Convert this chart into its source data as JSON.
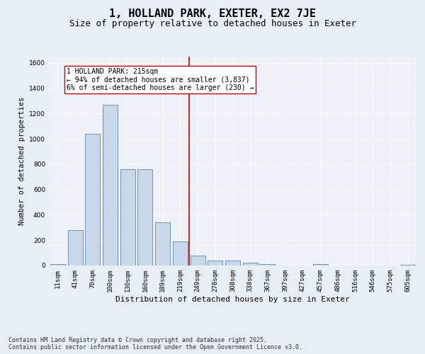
{
  "title": "1, HOLLAND PARK, EXETER, EX2 7JE",
  "subtitle": "Size of property relative to detached houses in Exeter",
  "xlabel": "Distribution of detached houses by size in Exeter",
  "ylabel": "Number of detached properties",
  "categories": [
    "11sqm",
    "41sqm",
    "70sqm",
    "100sqm",
    "130sqm",
    "160sqm",
    "189sqm",
    "219sqm",
    "249sqm",
    "278sqm",
    "308sqm",
    "338sqm",
    "367sqm",
    "397sqm",
    "427sqm",
    "457sqm",
    "486sqm",
    "516sqm",
    "546sqm",
    "575sqm",
    "605sqm"
  ],
  "values": [
    10,
    280,
    1040,
    1270,
    760,
    760,
    340,
    190,
    80,
    38,
    38,
    22,
    10,
    0,
    0,
    10,
    0,
    0,
    0,
    0,
    5
  ],
  "bar_color": "#c8d8e8",
  "bar_edge_color": "#5a8ab0",
  "vline_color": "#cc0000",
  "vline_x": 7.5,
  "annotation_text": "1 HOLLAND PARK: 215sqm\n← 94% of detached houses are smaller (3,837)\n6% of semi-detached houses are larger (230) →",
  "annotation_box_color": "#ffffff",
  "annotation_box_edge": "#cc0000",
  "ylim": [
    0,
    1650
  ],
  "yticks": [
    0,
    200,
    400,
    600,
    800,
    1000,
    1200,
    1400,
    1600
  ],
  "bg_color": "#e8eef5",
  "plot_bg_color": "#eef2f8",
  "footer": "Contains HM Land Registry data © Crown copyright and database right 2025.\nContains public sector information licensed under the Open Government Licence v3.0.",
  "title_fontsize": 11,
  "subtitle_fontsize": 9,
  "xlabel_fontsize": 8,
  "ylabel_fontsize": 7.5,
  "tick_fontsize": 6.5,
  "footer_fontsize": 6,
  "annotation_fontsize": 7
}
